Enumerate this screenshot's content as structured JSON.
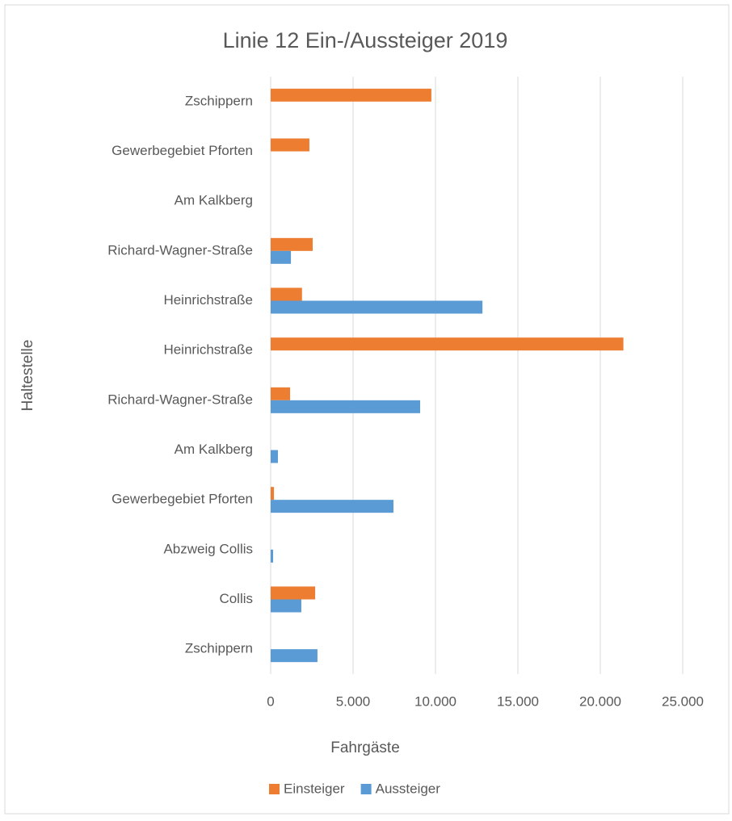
{
  "chart_data": {
    "type": "hbar",
    "title": "Linie 12 Ein-/Aussteiger 2019",
    "xlabel": "Fahrgäste",
    "ylabel": "Haltestelle",
    "categories": [
      "Zschippern",
      "Gewerbegebiet Pforten",
      "Am Kalkberg",
      "Richard-Wagner-Straße",
      "Heinrichstraße",
      "Heinrichstraße",
      "Richard-Wagner-Straße",
      "Am Kalkberg",
      "Gewerbegebiet Pforten",
      "Abzweig Collis",
      "Collis",
      "Zschippern"
    ],
    "series": [
      {
        "name": "Einsteiger",
        "color": "#ed7d31",
        "values": [
          9750,
          2350,
          0,
          2550,
          1900,
          21400,
          1180,
          0,
          200,
          0,
          2700,
          0
        ]
      },
      {
        "name": "Aussteiger",
        "color": "#5b9bd5",
        "values": [
          0,
          0,
          0,
          1230,
          12850,
          0,
          9070,
          440,
          7450,
          150,
          1860,
          2840
        ]
      }
    ],
    "xlim": [
      0,
      25000
    ],
    "xticks": [
      0,
      {
        "value": 5000,
        "label": "5.000"
      },
      {
        "value": 10000,
        "label": "10.000"
      },
      {
        "value": 15000,
        "label": "15.000"
      },
      {
        "value": 20000,
        "label": "20.000"
      },
      {
        "value": 25000,
        "label": "25.000"
      }
    ],
    "grid": true,
    "legend": "bottom"
  }
}
